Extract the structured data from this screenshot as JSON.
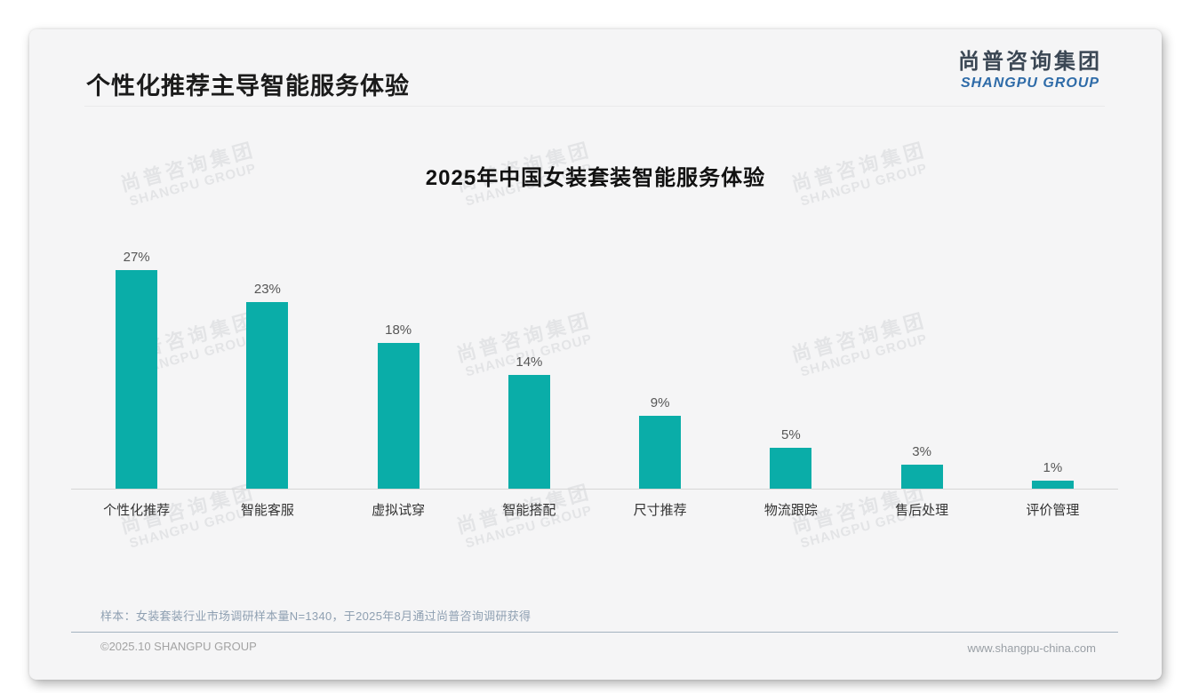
{
  "page": {
    "title": "个性化推荐主导智能服务体验",
    "logo": {
      "cn": "尚普咨询集团",
      "en": "SHANGPU GROUP"
    }
  },
  "chart_data": {
    "type": "bar",
    "title": "2025年中国女装套装智能服务体验",
    "categories": [
      "个性化推荐",
      "智能客服",
      "虚拟试穿",
      "智能搭配",
      "尺寸推荐",
      "物流跟踪",
      "售后处理",
      "评价管理"
    ],
    "values": [
      27,
      23,
      18,
      14,
      9,
      5,
      3,
      1
    ],
    "value_labels": [
      "27%",
      "23%",
      "18%",
      "14%",
      "9%",
      "5%",
      "3%",
      "1%"
    ],
    "unit": "%",
    "bar_color": "#0aada8",
    "ylim": [
      0,
      30
    ],
    "grid": false,
    "legend": "none",
    "xlabel": "",
    "ylabel": ""
  },
  "watermark": {
    "cn": "尚普咨询集团",
    "en": "SHANGPU GROUP"
  },
  "footnote": "样本：女装套装行业市场调研样本量N=1340，于2025年8月通过尚普咨询调研获得",
  "footer": {
    "copyright": "©2025.10 SHANGPU GROUP",
    "website": "www.shangpu-china.com"
  }
}
